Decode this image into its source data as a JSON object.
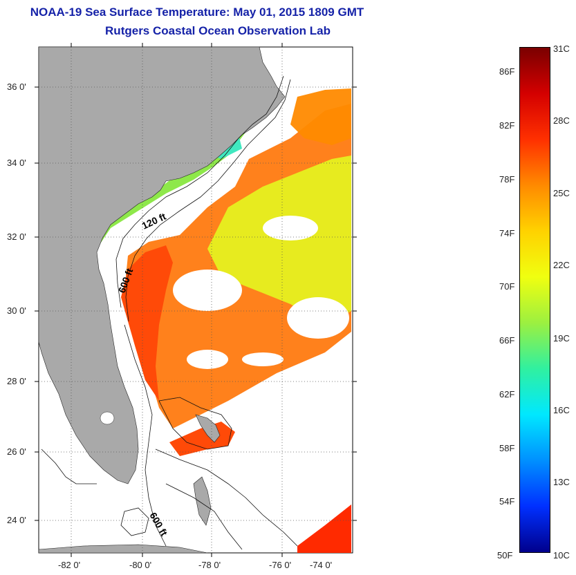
{
  "title": "NOAA-19 Sea Surface Temperature:  May 01, 2015 1809 GMT",
  "subtitle": "Rutgers Coastal Ocean Observation Lab",
  "map": {
    "lat_ticks": [
      "24 0'",
      "26 0'",
      "28 0'",
      "30 0'",
      "32 0'",
      "34 0'",
      "36 0'"
    ],
    "lon_ticks": [
      "-82 0'",
      "-80 0'",
      "-78 0'",
      "-76 0'",
      "-74 0'"
    ],
    "contour_labels": [
      "120 ft",
      "600 ft",
      "600 ft"
    ],
    "colors": {
      "land": "#a9a9a9",
      "ocean_cloud": "#ffffff",
      "grid": "#555555"
    }
  },
  "colorbar": {
    "fahrenheit": [
      "86F",
      "82F",
      "78F",
      "74F",
      "70F",
      "66F",
      "62F",
      "58F",
      "54F",
      "50F"
    ],
    "celsius": [
      "31C",
      "28C",
      "25C",
      "22C",
      "19C",
      "16C",
      "13C",
      "10C"
    ],
    "stops": [
      "#7a0000",
      "#d40000",
      "#ff3000",
      "#ff8a00",
      "#ffd200",
      "#f0ff10",
      "#9cf040",
      "#30f0a0",
      "#00e8ff",
      "#0090ff",
      "#0030ff",
      "#00008c"
    ]
  }
}
